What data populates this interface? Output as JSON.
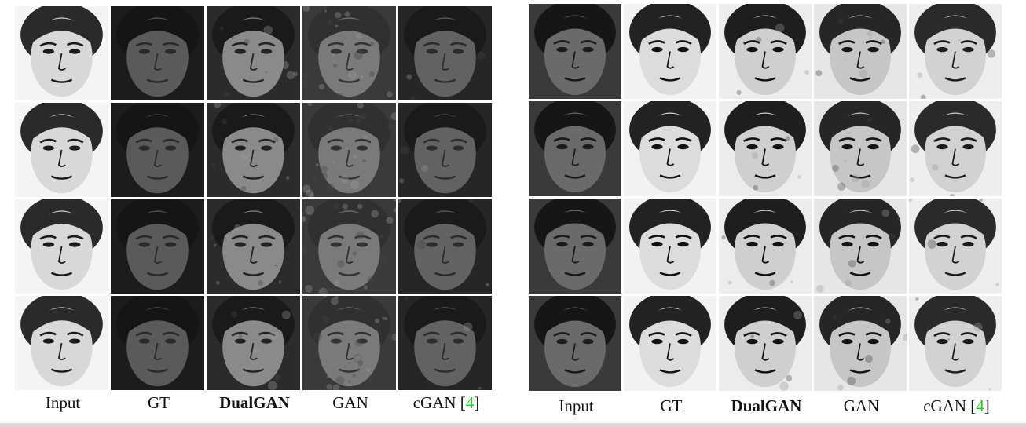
{
  "figure": {
    "left_panel": {
      "columns": [
        {
          "label": "Input",
          "bold": false
        },
        {
          "label": "GT",
          "bold": false
        },
        {
          "label": "DualGAN",
          "bold": true
        },
        {
          "label": "GAN",
          "bold": false
        },
        {
          "label": "cGAN [",
          "bold": false,
          "cite": "4",
          "suffix": "]"
        }
      ],
      "rows": 4
    },
    "right_panel": {
      "columns": [
        {
          "label": "Input",
          "bold": false
        },
        {
          "label": "GT",
          "bold": false
        },
        {
          "label": "DualGAN",
          "bold": true
        },
        {
          "label": "GAN",
          "bold": false
        },
        {
          "label": "cGAN [",
          "bold": false,
          "cite": "4",
          "suffix": "]"
        }
      ],
      "rows": 4
    }
  },
  "colors": {
    "citation": "#22cc22",
    "sketch_skin": "#d6d6d6",
    "photo_skin": "#5e5e5e",
    "hair": "#1e1e1e"
  }
}
